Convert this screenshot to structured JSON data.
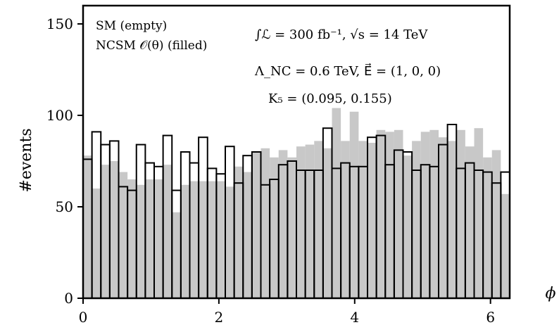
{
  "chart_data": {
    "type": "bar",
    "subtype": "histogram",
    "xlabel": "ϕ",
    "ylabel": "#events",
    "xlim": [
      0,
      6.2832
    ],
    "ylim": [
      0,
      160
    ],
    "xticks": [
      0,
      2,
      4,
      6
    ],
    "yticks": [
      0,
      50,
      100,
      150
    ],
    "bin_width": 0.1309,
    "series": [
      {
        "name": "SM (empty)",
        "style": "empty",
        "color": "#000000",
        "values": [
          76,
          91,
          84,
          86,
          61,
          59,
          84,
          74,
          72,
          89,
          59,
          80,
          74,
          88,
          71,
          68,
          83,
          63,
          78,
          80,
          62,
          65,
          73,
          75,
          70,
          70,
          70,
          93,
          71,
          74,
          72,
          72,
          88,
          89,
          73,
          81,
          80,
          70,
          73,
          72,
          84,
          95,
          71,
          74,
          70,
          69,
          63,
          69
        ]
      },
      {
        "name": "NCSM 𝒪(θ) (filled)",
        "style": "filled",
        "color": "#c8c8c8",
        "values": [
          78,
          60,
          73,
          75,
          69,
          65,
          62,
          65,
          65,
          73,
          47,
          62,
          64,
          64,
          64,
          64,
          61,
          72,
          69,
          80,
          82,
          77,
          81,
          77,
          83,
          84,
          86,
          82,
          104,
          86,
          102,
          86,
          85,
          92,
          91,
          92,
          78,
          86,
          91,
          92,
          88,
          86,
          92,
          83,
          93,
          77,
          81,
          57
        ]
      }
    ],
    "annotations": {
      "legend_empty": "SM (empty)",
      "legend_filled": "NCSM 𝒪(θ) (filled)",
      "luminosity": "∫ℒ = 300 fb⁻¹,  √s = 14 TeV",
      "lambda": "Λ_NC = 0.6 TeV,  E⃗ = (1, 0, 0)",
      "k5": "K₅ = (0.095, 0.155)"
    }
  }
}
